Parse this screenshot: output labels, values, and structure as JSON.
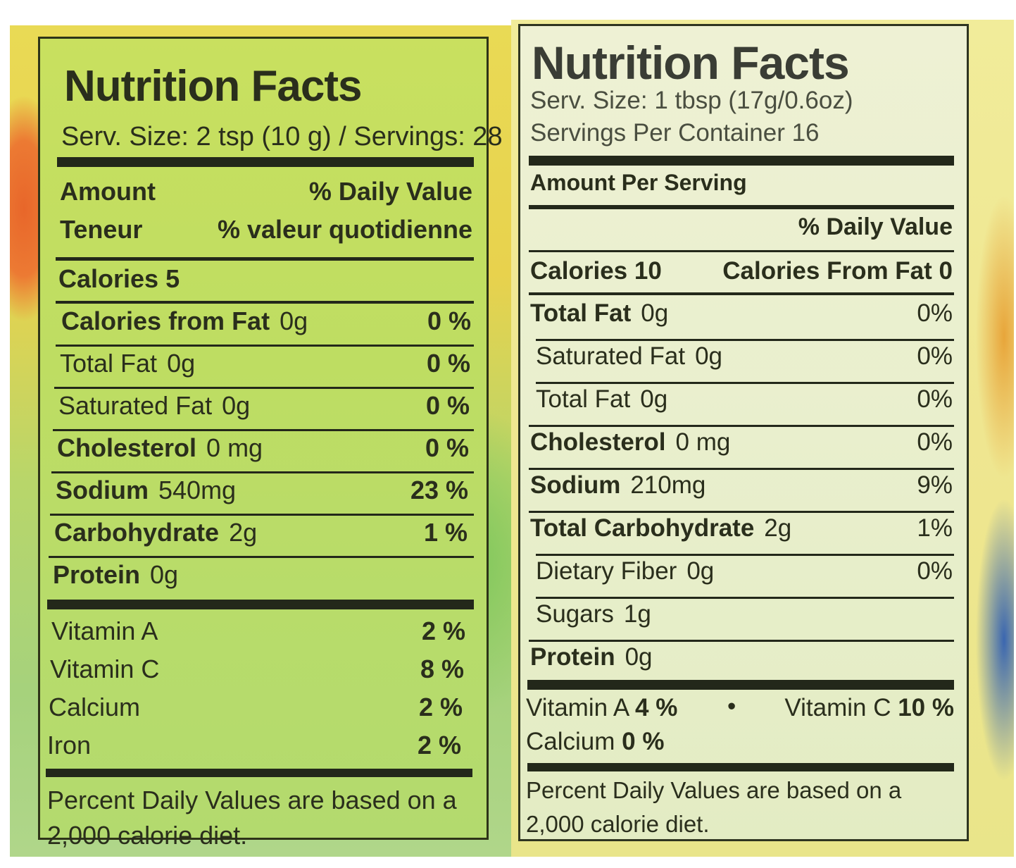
{
  "left_label": {
    "title": "Nutrition Facts",
    "serving_line": "Serv. Size: 2 tsp (10 g) / Servings: 28",
    "header_amount": "Amount",
    "header_dv": "% Daily Value",
    "header_teneur": "Teneur",
    "header_valeur": "% valeur quotidienne",
    "calories": {
      "label": "Calories",
      "value": "5"
    },
    "rows": [
      {
        "name": "Calories from Fat",
        "amount": "0g",
        "dv": "0 %",
        "bold": true
      },
      {
        "name": "Total Fat",
        "amount": "0g",
        "dv": "0 %",
        "bold": false
      },
      {
        "name": "Saturated Fat",
        "amount": "0g",
        "dv": "0 %",
        "bold": false
      },
      {
        "name": "Cholesterol",
        "amount": "0 mg",
        "dv": "0 %",
        "bold": true
      },
      {
        "name": "Sodium",
        "amount": "540mg",
        "dv": "23 %",
        "bold": true
      },
      {
        "name": "Carbohydrate",
        "amount": "2g",
        "dv": "1 %",
        "bold": true
      },
      {
        "name": "Protein",
        "amount": "0g",
        "dv": "",
        "bold": true
      }
    ],
    "vitamins": [
      {
        "name": "Vitamin A",
        "dv": "2 %"
      },
      {
        "name": "Vitamin C",
        "dv": "8 %"
      },
      {
        "name": "Calcium",
        "dv": "2 %"
      },
      {
        "name": "Iron",
        "dv": "2 %"
      }
    ],
    "footnote_line1": "Percent Daily Values are based on a",
    "footnote_line2": "2,000 calorie diet."
  },
  "right_label": {
    "title": "Nutrition Facts",
    "serving_size": "Serv. Size: 1 tbsp (17g/0.6oz)",
    "servings_per_container": "Servings Per Container 16",
    "amount_per_serving": "Amount Per Serving",
    "header_dv": "% Daily Value",
    "calories": {
      "label": "Calories",
      "value": "10"
    },
    "calories_from_fat": "Calories From Fat 0",
    "rows": [
      {
        "name": "Total Fat",
        "amount": "0g",
        "dv": "0%",
        "bold": true,
        "indent": false
      },
      {
        "name": "Saturated Fat",
        "amount": "0g",
        "dv": "0%",
        "bold": false,
        "indent": true
      },
      {
        "name": "Total Fat",
        "amount": "0g",
        "dv": "0%",
        "bold": false,
        "indent": true
      },
      {
        "name": "Cholesterol",
        "amount": "0 mg",
        "dv": "0%",
        "bold": true,
        "indent": false
      },
      {
        "name": "Sodium",
        "amount": "210mg",
        "dv": "9%",
        "bold": true,
        "indent": false
      },
      {
        "name": "Total Carbohydrate",
        "amount": "2g",
        "dv": "1%",
        "bold": true,
        "indent": false
      },
      {
        "name": "Dietary Fiber",
        "amount": "0g",
        "dv": "0%",
        "bold": false,
        "indent": true
      },
      {
        "name": "Sugars",
        "amount": "1g",
        "dv": "",
        "bold": false,
        "indent": true
      },
      {
        "name": "Protein",
        "amount": "0g",
        "dv": "",
        "bold": true,
        "indent": false
      }
    ],
    "vitamin_a": {
      "name": "Vitamin A",
      "dv": "4 %"
    },
    "bullet": "•",
    "vitamin_c": {
      "name": "Vitamin C",
      "dv": "10 %"
    },
    "calcium": {
      "name": "Calcium",
      "dv": "0 %"
    },
    "footnote_line1": "Percent Daily Values are based on a",
    "footnote_line2": "2,000 calorie diet."
  }
}
